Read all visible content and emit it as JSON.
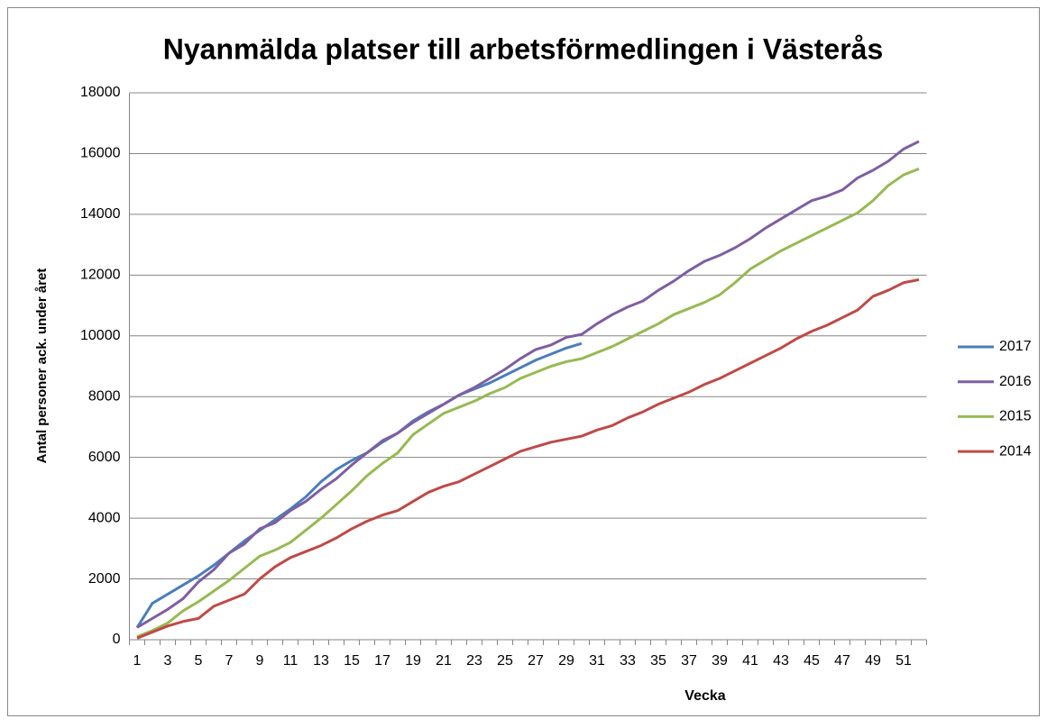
{
  "chart_data": {
    "type": "line",
    "title": "Nyanmälda platser till arbetsförmedlingen i Västerås",
    "x_label": "Vecka",
    "y_label": "Antal personer ack. under året",
    "categories": [
      1,
      null,
      3,
      null,
      5,
      null,
      7,
      null,
      9,
      null,
      11,
      null,
      13,
      null,
      15,
      null,
      17,
      null,
      19,
      null,
      21,
      null,
      23,
      null,
      25,
      null,
      27,
      null,
      29,
      null,
      31,
      null,
      33,
      null,
      35,
      null,
      37,
      null,
      39,
      null,
      41,
      null,
      43,
      null,
      45,
      null,
      47,
      null,
      49,
      null,
      51,
      null
    ],
    "ylim": [
      0,
      18000
    ],
    "yticks": [
      0,
      2000,
      4000,
      6000,
      8000,
      10000,
      12000,
      14000,
      16000,
      18000
    ],
    "grid": true,
    "legend": "right",
    "series": [
      {
        "name": "2017",
        "color": "#4a7ebb",
        "values": [
          400,
          1200,
          1500,
          1800,
          2100,
          2450,
          2850,
          3250,
          3600,
          3950,
          4300,
          4700,
          5200,
          5600,
          5900,
          6150,
          6500,
          6800,
          7200,
          7500,
          7750,
          8050,
          8250,
          8450,
          8700,
          8950,
          9200,
          9400,
          9600,
          9750,
          null,
          null,
          null,
          null,
          null,
          null,
          null,
          null,
          null,
          null,
          null,
          null,
          null,
          null,
          null,
          null,
          null,
          null,
          null,
          null,
          null,
          null
        ]
      },
      {
        "name": "2016",
        "color": "#7e5fa0",
        "values": [
          400,
          700,
          1000,
          1350,
          1900,
          2300,
          2850,
          3150,
          3650,
          3850,
          4250,
          4550,
          4950,
          5300,
          5750,
          6150,
          6550,
          6800,
          7150,
          7450,
          7750,
          8050,
          8300,
          8600,
          8900,
          9250,
          9550,
          9700,
          9950,
          10050,
          10400,
          10700,
          10950,
          11150,
          11500,
          11800,
          12150,
          12450,
          12650,
          12900,
          13200,
          13550,
          13850,
          14150,
          14450,
          14600,
          14800,
          15200,
          15450,
          15750,
          16150,
          16400
        ]
      },
      {
        "name": "2015",
        "color": "#98b954",
        "values": [
          100,
          300,
          550,
          950,
          1250,
          1600,
          1950,
          2350,
          2750,
          2950,
          3200,
          3600,
          4000,
          4450,
          4900,
          5400,
          5800,
          6150,
          6750,
          7100,
          7450,
          7650,
          7850,
          8100,
          8300,
          8600,
          8800,
          9000,
          9150,
          9250,
          9450,
          9650,
          9900,
          10150,
          10400,
          10700,
          10900,
          11100,
          11350,
          11750,
          12200,
          12500,
          12800,
          13050,
          13300,
          13550,
          13800,
          14050,
          14450,
          14950,
          15300,
          15500
        ]
      },
      {
        "name": "2014",
        "color": "#be4b48",
        "values": [
          50,
          250,
          450,
          600,
          700,
          1100,
          1300,
          1500,
          2000,
          2400,
          2700,
          2900,
          3100,
          3350,
          3650,
          3900,
          4100,
          4250,
          4550,
          4850,
          5050,
          5200,
          5450,
          5700,
          5950,
          6200,
          6350,
          6500,
          6600,
          6700,
          6900,
          7050,
          7300,
          7500,
          7750,
          7950,
          8150,
          8400,
          8600,
          8850,
          9100,
          9350,
          9600,
          9900,
          10150,
          10350,
          10600,
          10850,
          11300,
          11500,
          11750,
          11850
        ]
      }
    ]
  }
}
